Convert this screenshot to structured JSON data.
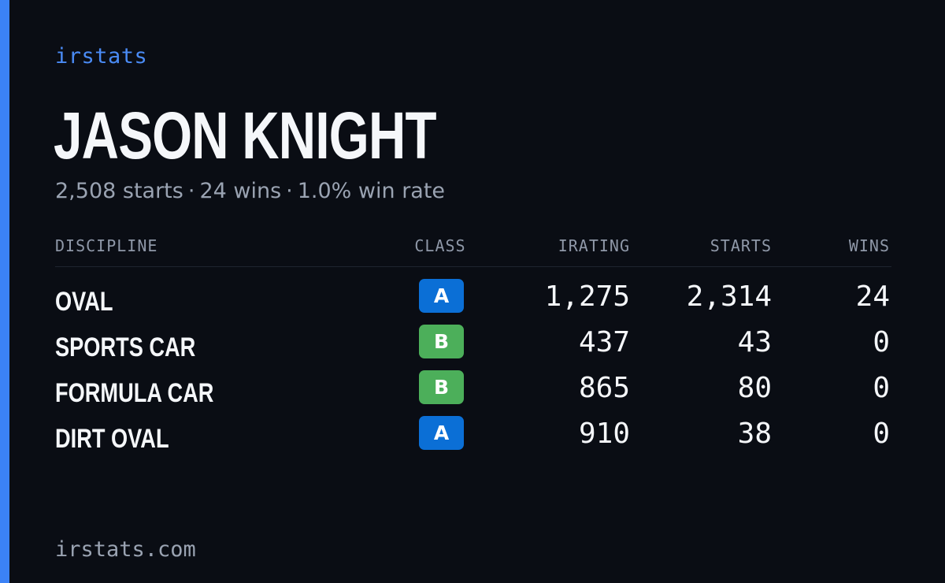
{
  "brand": "irstats",
  "player": {
    "name": "JASON KNIGHT",
    "starts": "2,508 starts",
    "wins": "24 wins",
    "win_rate": "1.0% win rate",
    "separator": "·"
  },
  "table": {
    "headers": {
      "discipline": "DISCIPLINE",
      "class": "CLASS",
      "irating": "IRATING",
      "starts": "STARTS",
      "wins": "WINS"
    },
    "rows": [
      {
        "discipline": "OVAL",
        "class": "A",
        "irating": "1,275",
        "starts": "2,314",
        "wins": "24"
      },
      {
        "discipline": "SPORTS CAR",
        "class": "B",
        "irating": "437",
        "starts": "43",
        "wins": "0"
      },
      {
        "discipline": "FORMULA CAR",
        "class": "B",
        "irating": "865",
        "starts": "80",
        "wins": "0"
      },
      {
        "discipline": "DIRT OVAL",
        "class": "A",
        "irating": "910",
        "starts": "38",
        "wins": "0"
      }
    ]
  },
  "colors": {
    "accent": "#3b82f6",
    "class_a": "#0b6fd6",
    "class_b": "#4caf5a",
    "background": "#0a0d14"
  },
  "footer": {
    "domain": "irstats.com"
  }
}
